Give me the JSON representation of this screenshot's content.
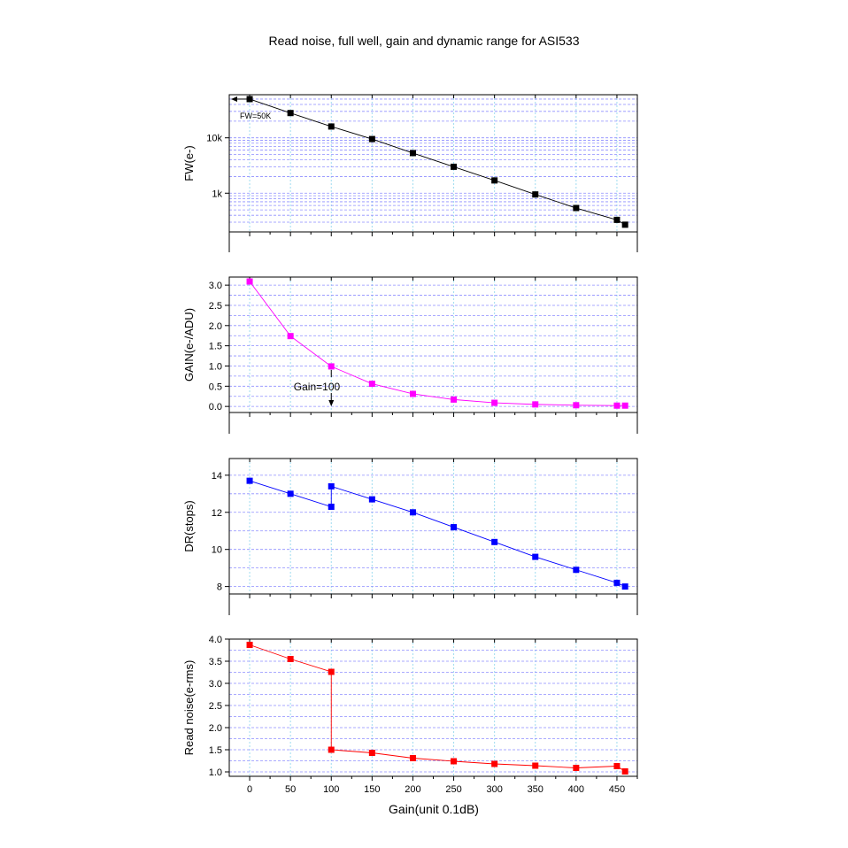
{
  "chart_data": {
    "type": "line",
    "title": "Read noise, full well, gain and dynamic range for ASI533",
    "xlabel": "Gain(unit 0.1dB)",
    "xlim": [
      -25,
      475
    ],
    "xticks": [
      0,
      50,
      100,
      150,
      200,
      250,
      300,
      350,
      400,
      450
    ],
    "grid": true,
    "panels": [
      {
        "id": "fw",
        "ylabel": "FW(e-)",
        "scale": "log",
        "ylim": [
          200,
          60000
        ],
        "yticks": [
          1000,
          10000
        ],
        "yticklabels": [
          "1k",
          "10k"
        ],
        "color": "#000000",
        "x": [
          0,
          50,
          100,
          150,
          200,
          250,
          300,
          350,
          400,
          450,
          460
        ],
        "y": [
          50000,
          28000,
          16000,
          9500,
          5300,
          3000,
          1700,
          950,
          540,
          330,
          270
        ],
        "annotation": "FW=50K"
      },
      {
        "id": "gain",
        "ylabel": "GAIN(e-/ADU)",
        "scale": "linear",
        "ylim": [
          -0.15,
          3.2
        ],
        "yticks": [
          0.0,
          0.5,
          1.0,
          1.5,
          2.0,
          2.5,
          3.0
        ],
        "yticklabels": [
          "0.0",
          "0.5",
          "1.0",
          "1.5",
          "2.0",
          "2.5",
          "3.0"
        ],
        "color": "#ff00ff",
        "x": [
          0,
          50,
          100,
          150,
          200,
          250,
          300,
          350,
          400,
          450,
          460
        ],
        "y": [
          3.09,
          1.74,
          0.99,
          0.56,
          0.31,
          0.17,
          0.09,
          0.05,
          0.03,
          0.02,
          0.02
        ],
        "annotation": "Gain=100"
      },
      {
        "id": "dr",
        "ylabel": "DR(stops)",
        "scale": "linear",
        "ylim": [
          7.6,
          14.9
        ],
        "yticks": [
          8,
          10,
          12,
          14
        ],
        "yticklabels": [
          "8",
          "10",
          "12",
          "14"
        ],
        "color": "#0000ff",
        "x": [
          0,
          50,
          100,
          100,
          150,
          200,
          250,
          300,
          350,
          400,
          450,
          460
        ],
        "y": [
          13.7,
          13.0,
          12.3,
          13.4,
          12.7,
          12.0,
          11.2,
          10.4,
          9.6,
          8.9,
          8.2,
          8.0
        ]
      },
      {
        "id": "rn",
        "ylabel": "Read noise(e-rms)",
        "scale": "linear",
        "ylim": [
          0.9,
          4.0
        ],
        "yticks": [
          1.0,
          1.5,
          2.0,
          2.5,
          3.0,
          3.5,
          4.0
        ],
        "yticklabels": [
          "1.0",
          "1.5",
          "2.0",
          "2.5",
          "3.0",
          "3.5",
          "4.0"
        ],
        "color": "#ff0000",
        "x": [
          0,
          50,
          100,
          100,
          150,
          200,
          250,
          300,
          350,
          400,
          450,
          460
        ],
        "y": [
          3.87,
          3.55,
          3.26,
          1.5,
          1.43,
          1.31,
          1.24,
          1.18,
          1.14,
          1.09,
          1.13,
          1.01
        ]
      }
    ]
  }
}
